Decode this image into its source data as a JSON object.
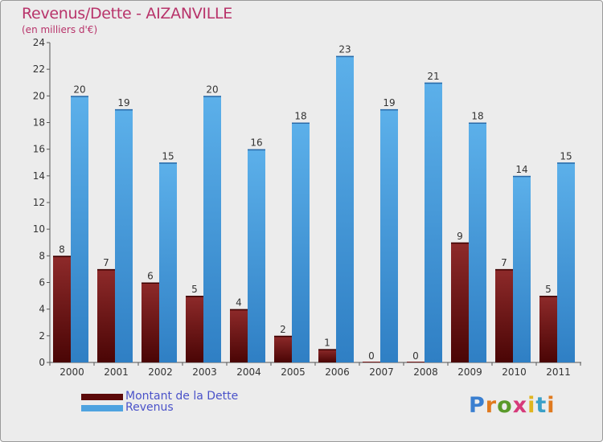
{
  "header": {
    "title": "Revenus/Dette - AIZANVILLE",
    "subtitle": "(en milliers d'€)"
  },
  "colors": {
    "dette": "#7a1a1a",
    "revenus": "#4fa3e0",
    "title": "#b8336a",
    "legend_text": "#4a52c9"
  },
  "legend": {
    "items": [
      {
        "label": "Montant de la Dette",
        "color": "#5c0a0a"
      },
      {
        "label": "Revenus",
        "color": "#4fa3e0"
      }
    ]
  },
  "logo": {
    "text": "Proxiti"
  },
  "chart_data": {
    "type": "bar",
    "title": "Revenus/Dette - AIZANVILLE",
    "subtitle": "(en milliers d'€)",
    "xlabel": "",
    "ylabel": "",
    "ylim": [
      0,
      24
    ],
    "yticks": [
      0,
      2,
      4,
      6,
      8,
      10,
      12,
      14,
      16,
      18,
      20,
      22,
      24
    ],
    "grid": false,
    "legend_position": "bottom-left",
    "categories": [
      "2000",
      "2001",
      "2002",
      "2003",
      "2004",
      "2005",
      "2006",
      "2007",
      "2008",
      "2009",
      "2010",
      "2011"
    ],
    "series": [
      {
        "name": "Montant de la Dette",
        "values": [
          8,
          7,
          6,
          5,
          4,
          2,
          1,
          0,
          0,
          9,
          7,
          5
        ]
      },
      {
        "name": "Revenus",
        "values": [
          20,
          19,
          15,
          20,
          16,
          18,
          23,
          19,
          21,
          18,
          14,
          15
        ]
      }
    ]
  }
}
